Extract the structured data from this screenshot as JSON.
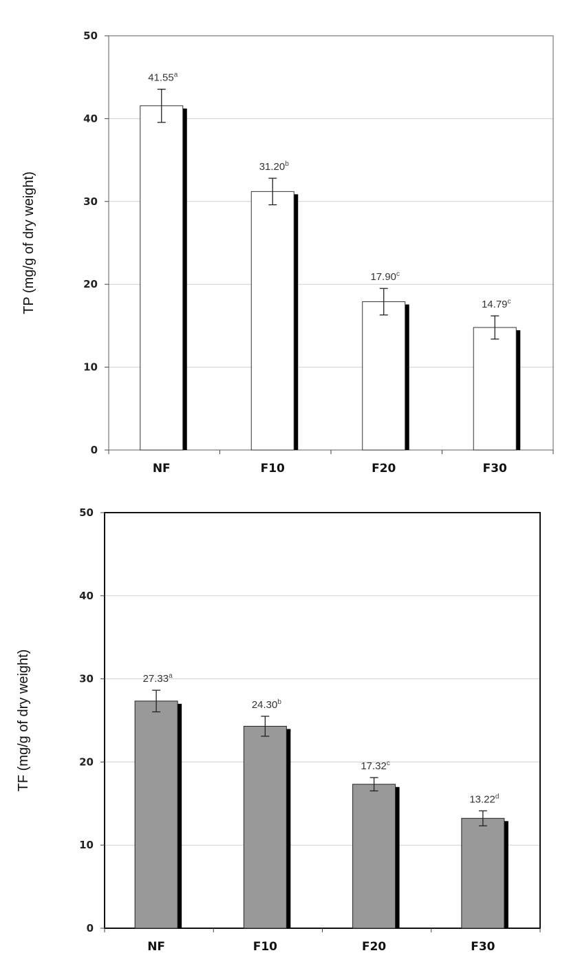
{
  "chart_data": [
    {
      "type": "bar",
      "title": "",
      "xlabel": "",
      "ylabel": "TP (mg/g of dry weight)",
      "ylim": [
        0,
        50
      ],
      "yticks": [
        0,
        10,
        20,
        30,
        40,
        50
      ],
      "grid": true,
      "bar_color": "#ffffff",
      "categories": [
        "NF",
        "F10",
        "F20",
        "F30"
      ],
      "values": [
        41.55,
        31.2,
        17.9,
        14.79
      ],
      "errors": [
        2.0,
        1.6,
        1.6,
        1.4
      ],
      "labels": [
        "41.55",
        "31.20",
        "17.90",
        "14.79"
      ],
      "letters": [
        "a",
        "b",
        "c",
        "c"
      ]
    },
    {
      "type": "bar",
      "title": "",
      "xlabel": "",
      "ylabel": "TF (mg/g of dry weight)",
      "ylim": [
        0,
        50
      ],
      "yticks": [
        0,
        10,
        20,
        30,
        40,
        50
      ],
      "grid": true,
      "bar_color": "#999999",
      "categories": [
        "NF",
        "F10",
        "F20",
        "F30"
      ],
      "values": [
        27.33,
        24.3,
        17.32,
        13.22
      ],
      "errors": [
        1.3,
        1.2,
        0.8,
        0.9
      ],
      "labels": [
        "27.33",
        "24.30",
        "17.32",
        "13.22"
      ],
      "letters": [
        "a",
        "b",
        "c",
        "d"
      ]
    }
  ]
}
